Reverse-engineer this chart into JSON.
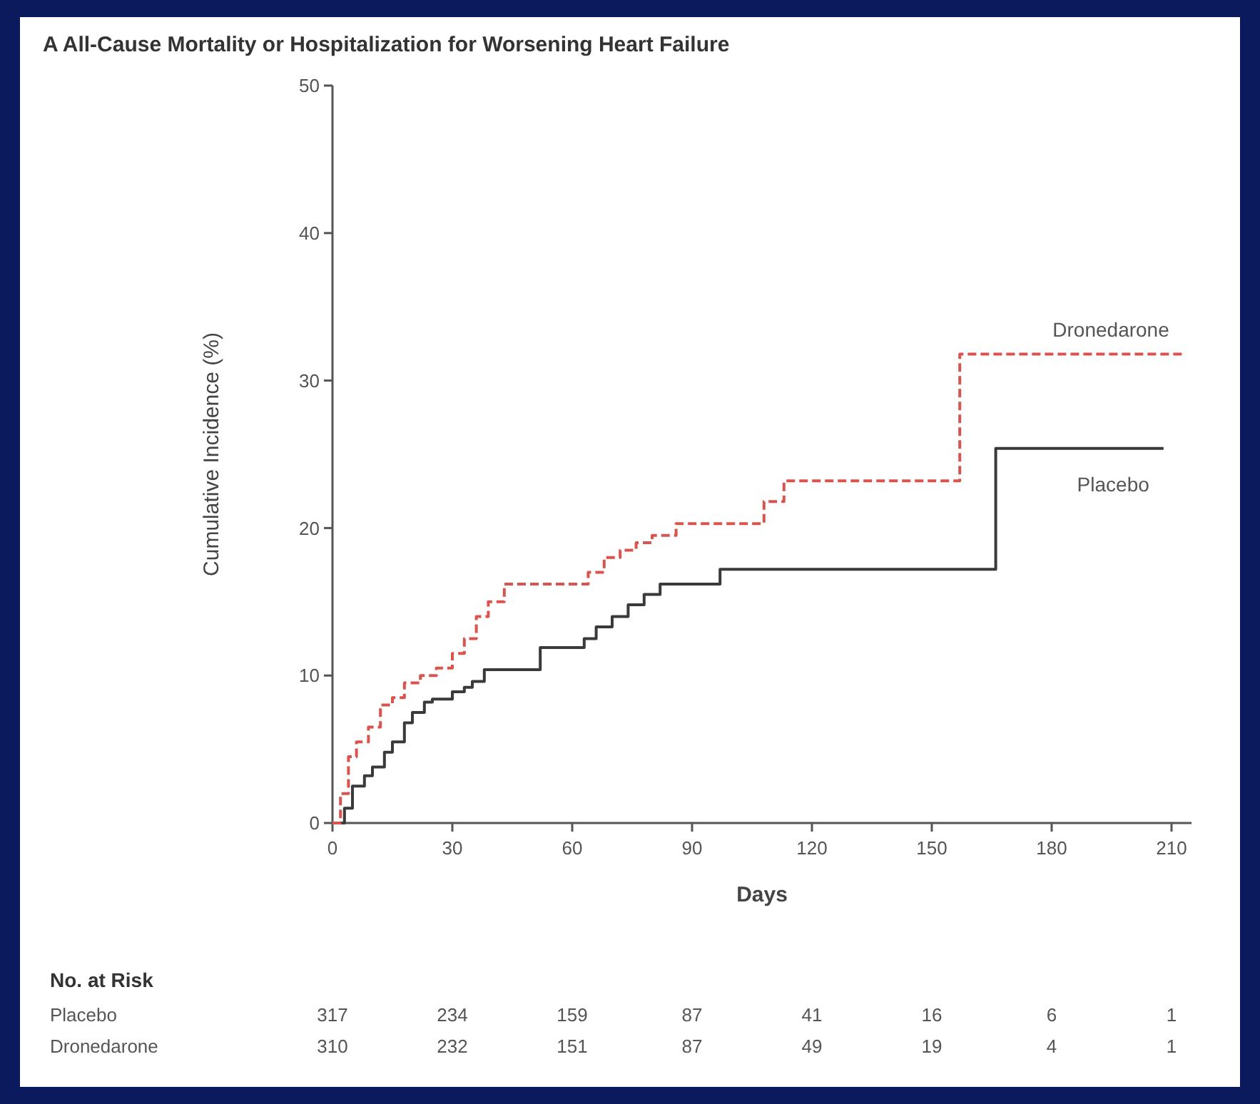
{
  "chart_data": {
    "type": "step",
    "title": "A All-Cause Mortality or Hospitalization for Worsening Heart Failure",
    "xlabel": "Days",
    "ylabel": "Cumulative Incidence (%)",
    "xlim": [
      0,
      215
    ],
    "xticks": [
      0,
      30,
      60,
      90,
      120,
      150,
      180,
      210
    ],
    "ylim": [
      0,
      50
    ],
    "yticks": [
      0,
      10,
      20,
      30,
      40,
      50
    ],
    "grid": false,
    "series": [
      {
        "name": "Placebo",
        "color": "#3a3a3a",
        "line_style": "solid",
        "x": [
          0,
          3,
          5,
          8,
          10,
          13,
          15,
          18,
          20,
          23,
          25,
          30,
          33,
          35,
          38,
          50,
          52,
          55,
          63,
          66,
          70,
          74,
          78,
          82,
          86,
          97,
          166,
          208
        ],
        "values": [
          0,
          1,
          2.5,
          3.2,
          3.8,
          4.8,
          5.5,
          6.8,
          7.5,
          8.2,
          8.4,
          8.9,
          9.2,
          9.6,
          10.4,
          10.4,
          11.9,
          11.9,
          12.5,
          13.3,
          14,
          14.8,
          15.5,
          16.2,
          16.2,
          17.2,
          25.4,
          25.4
        ]
      },
      {
        "name": "Dronedarone",
        "color": "#d9534f",
        "line_style": "dashed",
        "x": [
          0,
          2,
          4,
          6,
          9,
          12,
          15,
          18,
          22,
          26,
          30,
          33,
          36,
          39,
          43,
          61,
          64,
          68,
          72,
          76,
          80,
          86,
          108,
          113,
          157,
          213
        ],
        "values": [
          0,
          2,
          4.5,
          5.5,
          6.5,
          8,
          8.5,
          9.5,
          10,
          10.5,
          11.5,
          12.5,
          14,
          15,
          16.2,
          16.2,
          17,
          18,
          18.5,
          19,
          19.5,
          20.3,
          21.8,
          23.2,
          31.8,
          31.8
        ]
      }
    ],
    "annotations": [
      "No. at Risk",
      "Placebo",
      "317",
      "234",
      "159",
      "87",
      "41",
      "16",
      "6",
      "1",
      "Dronedarone",
      "310",
      "232",
      "151",
      "87",
      "49",
      "19",
      "4",
      "1"
    ]
  }
}
